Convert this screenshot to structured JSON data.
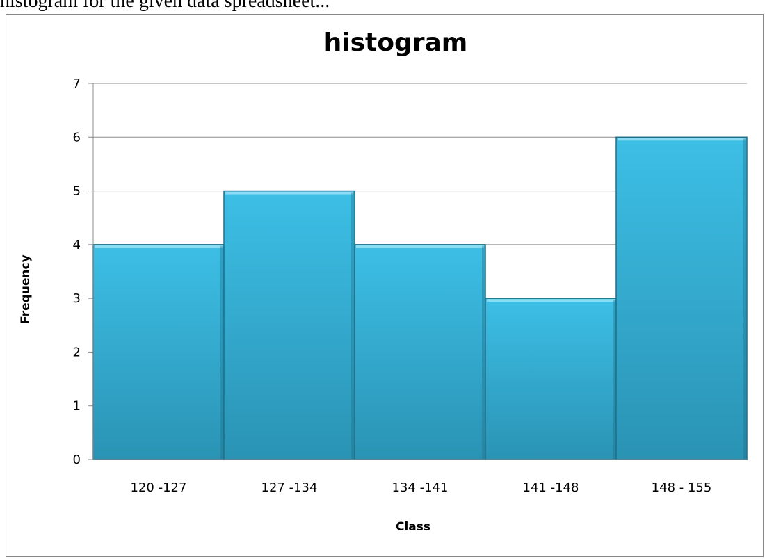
{
  "caption": {
    "text": "histogram for the given data spreadsheet..."
  },
  "chart_data": {
    "type": "bar",
    "title": "histogram",
    "xlabel": "Class",
    "ylabel": "Frequency",
    "categories": [
      "120 -127",
      "127 -134",
      "134 -141",
      "141 -148",
      "148 - 155"
    ],
    "values": [
      4,
      5,
      4,
      3,
      6
    ],
    "ylim": [
      0,
      7
    ],
    "yticks": [
      0,
      1,
      2,
      3,
      4,
      5,
      6,
      7
    ],
    "grid": true,
    "legend": "none",
    "colors": {
      "bar_top": "#3dbfe6",
      "bar_bottom": "#2a93b4",
      "bar_edge": "#1e6f87",
      "gridline": "#8c8c8c",
      "axis": "#8c8c8c"
    }
  }
}
